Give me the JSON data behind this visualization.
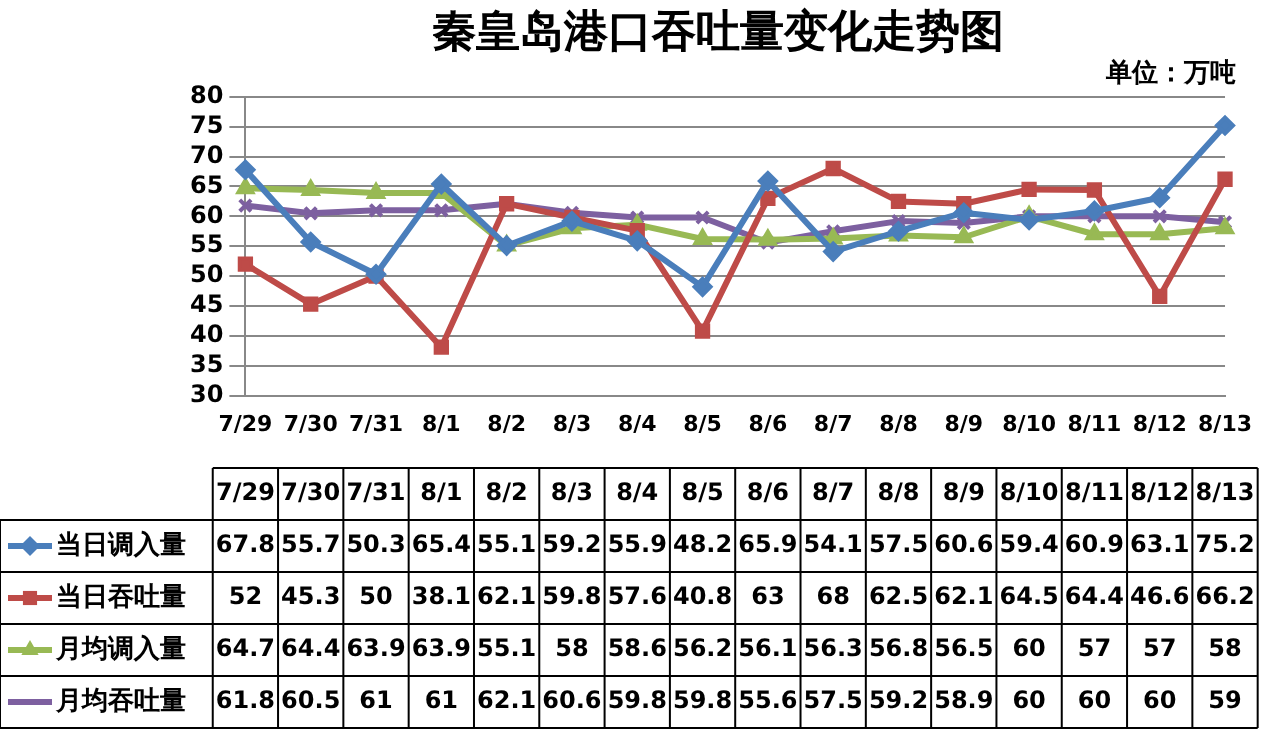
{
  "chart_data": {
    "type": "line",
    "title": "秦皇岛港口吞吐量变化走势图",
    "annotations": [
      "单位：万吨"
    ],
    "categories": [
      "7/29",
      "7/30",
      "7/31",
      "8/1",
      "8/2",
      "8/3",
      "8/4",
      "8/5",
      "8/6",
      "8/7",
      "8/8",
      "8/9",
      "8/10",
      "8/11",
      "8/12",
      "8/13"
    ],
    "series": [
      {
        "name": "当日调入量",
        "color": "#4a7ebb",
        "marker": "diamond",
        "values": [
          67.8,
          55.7,
          50.3,
          65.4,
          55.1,
          59.2,
          55.9,
          48.2,
          65.9,
          54.1,
          57.5,
          60.6,
          59.4,
          60.9,
          63.1,
          75.2
        ]
      },
      {
        "name": "当日吞吐量",
        "color": "#be4b48",
        "marker": "square",
        "values": [
          52,
          45.3,
          50,
          38.1,
          62.1,
          59.8,
          57.6,
          40.8,
          63,
          68,
          62.5,
          62.1,
          64.5,
          64.4,
          46.6,
          66.2
        ]
      },
      {
        "name": "月均调入量",
        "color": "#98b954",
        "marker": "triangle",
        "values": [
          64.7,
          64.4,
          63.9,
          63.9,
          55.1,
          58,
          58.6,
          56.2,
          56.1,
          56.3,
          56.8,
          56.5,
          60,
          57,
          57,
          58
        ]
      },
      {
        "name": "月均吞吐量",
        "color": "#7d60a0",
        "marker": "cross",
        "values": [
          61.8,
          60.5,
          61,
          61,
          62.1,
          60.6,
          59.8,
          59.8,
          55.6,
          57.5,
          59.2,
          58.9,
          60,
          60,
          60,
          59
        ]
      }
    ],
    "ylim": [
      30,
      80
    ],
    "yticks": [
      30,
      35,
      40,
      45,
      50,
      55,
      60,
      65,
      70,
      75,
      80
    ],
    "grid": "y",
    "legend": "bottom",
    "data_labels": true,
    "line_style": "solid"
  }
}
